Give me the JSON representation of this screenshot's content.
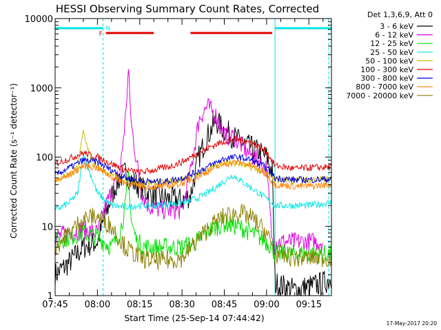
{
  "chart_data": {
    "type": "line",
    "title": "HESSI Observing Summary Count Rates, Corrected",
    "xlabel": "Start Time (25-Sep-14 07:44:42)",
    "ylabel": "Corrected Count Rate (s⁻¹ detector⁻¹)",
    "y_scale": "log",
    "ylim": [
      1,
      10000
    ],
    "xlim_minutes": [
      "07:45",
      "09:23"
    ],
    "x_ticks": [
      "07:45",
      "08:00",
      "08:15",
      "08:30",
      "08:45",
      "09:00",
      "09:15"
    ],
    "y_ticks": [
      "1",
      "10",
      "100",
      "1000",
      "10000"
    ],
    "legend_position": "right-outside",
    "legend_header": "Det 1,3,6,9, Att 0",
    "timestamp": "17-May-2017 20:20",
    "flags": [
      {
        "label": "N",
        "color": "#00e5e5",
        "intervals": [
          [
            "07:45",
            "08:02"
          ],
          [
            "09:03",
            "09:23"
          ]
        ]
      },
      {
        "label": "F",
        "color": "#e00000",
        "intervals": [
          [
            "08:03",
            "08:20"
          ],
          [
            "08:33",
            "09:02"
          ]
        ]
      }
    ],
    "vlines": [
      {
        "time": "08:02",
        "color": "#00e5e5",
        "style": "dashed"
      },
      {
        "time": "09:03",
        "color": "#00e5e5",
        "style": "solid"
      },
      {
        "time": "09:22",
        "color": "#00e5e5",
        "style": "dashed"
      }
    ],
    "series": [
      {
        "name": "3 - 6 keV",
        "color": "#000000",
        "t": [
          "07:45",
          "07:50",
          "07:55",
          "08:00",
          "08:03",
          "08:06",
          "08:08",
          "08:10",
          "08:12",
          "08:14",
          "08:16",
          "08:18",
          "08:20",
          "08:25",
          "08:30",
          "08:33",
          "08:36",
          "08:39",
          "08:42",
          "08:45",
          "08:48",
          "08:51",
          "08:54",
          "08:57",
          "09:00",
          "09:02",
          "09:03",
          "09:10",
          "09:20",
          "09:23"
        ],
        "v": [
          2,
          3,
          5,
          6,
          15,
          35,
          50,
          60,
          45,
          40,
          35,
          30,
          27,
          25,
          24,
          28,
          100,
          200,
          330,
          250,
          200,
          160,
          140,
          120,
          100,
          60,
          1.5,
          1.2,
          1.5,
          1.8
        ]
      },
      {
        "name": "6 - 12 keV",
        "color": "#e000e0",
        "t": [
          "07:45",
          "07:50",
          "07:55",
          "08:00",
          "08:03",
          "08:06",
          "08:08",
          "08:10",
          "08:11",
          "08:12",
          "08:14",
          "08:16",
          "08:18",
          "08:20",
          "08:25",
          "08:30",
          "08:33",
          "08:36",
          "08:39",
          "08:42",
          "08:45",
          "08:48",
          "08:51",
          "08:54",
          "08:57",
          "09:00",
          "09:02",
          "09:03",
          "09:10",
          "09:20",
          "09:23"
        ],
        "v": [
          7,
          8,
          9,
          8,
          20,
          40,
          60,
          400,
          1800,
          300,
          80,
          30,
          20,
          18,
          17,
          17,
          60,
          350,
          550,
          400,
          200,
          200,
          150,
          110,
          90,
          70,
          6,
          6,
          6,
          6
        ]
      },
      {
        "name": "12 - 25 keV",
        "color": "#00e000",
        "t": [
          "07:45",
          "07:50",
          "07:55",
          "08:00",
          "08:05",
          "08:08",
          "08:10",
          "08:11",
          "08:12",
          "08:14",
          "08:17",
          "08:20",
          "08:25",
          "08:30",
          "08:35",
          "08:40",
          "08:45",
          "08:50",
          "08:55",
          "09:00",
          "09:02",
          "09:03",
          "09:10",
          "09:20",
          "09:23"
        ],
        "v": [
          6,
          7,
          8,
          7,
          5,
          8,
          20,
          60,
          12,
          6,
          5,
          5,
          5,
          5,
          6,
          9,
          11,
          10,
          8,
          6,
          5,
          4,
          4,
          4,
          4
        ]
      },
      {
        "name": "25 - 50 keV",
        "color": "#00e5e5",
        "t": [
          "07:45",
          "07:50",
          "07:53",
          "07:55",
          "08:00",
          "08:05",
          "08:10",
          "08:15",
          "08:20",
          "08:25",
          "08:30",
          "08:35",
          "08:40",
          "08:45",
          "08:48",
          "08:51",
          "08:55",
          "09:00",
          "09:03",
          "09:10",
          "09:15",
          "09:23"
        ],
        "v": [
          17,
          22,
          30,
          110,
          30,
          20,
          19,
          20,
          20,
          21,
          22,
          25,
          32,
          45,
          55,
          45,
          35,
          25,
          20,
          20,
          20,
          22
        ]
      },
      {
        "name": "50 - 100 keV",
        "color": "#d0c000",
        "t": [
          "07:45",
          "07:50",
          "07:53",
          "07:55",
          "07:58",
          "08:00",
          "08:05",
          "08:10",
          "08:15",
          "08:20",
          "08:25",
          "08:30",
          "08:35",
          "08:40",
          "08:45",
          "08:50",
          "08:55",
          "09:00",
          "09:03",
          "09:10",
          "09:15",
          "09:23"
        ],
        "v": [
          45,
          55,
          70,
          240,
          80,
          70,
          55,
          45,
          42,
          42,
          43,
          48,
          55,
          70,
          85,
          80,
          70,
          58,
          48,
          47,
          47,
          48
        ]
      },
      {
        "name": "100 - 300 keV",
        "color": "#e00000",
        "t": [
          "07:45",
          "07:50",
          "07:55",
          "08:00",
          "08:05",
          "08:10",
          "08:15",
          "08:20",
          "08:25",
          "08:30",
          "08:35",
          "08:40",
          "08:45",
          "08:50",
          "08:55",
          "09:00",
          "09:03",
          "09:10",
          "09:15",
          "09:23"
        ],
        "v": [
          80,
          95,
          115,
          100,
          80,
          65,
          60,
          65,
          72,
          85,
          110,
          140,
          170,
          180,
          160,
          120,
          75,
          68,
          70,
          72
        ]
      },
      {
        "name": "300 - 800 keV",
        "color": "#0000e0",
        "t": [
          "07:45",
          "07:50",
          "07:55",
          "08:00",
          "08:05",
          "08:10",
          "08:15",
          "08:20",
          "08:25",
          "08:30",
          "08:35",
          "08:40",
          "08:45",
          "08:50",
          "08:55",
          "09:00",
          "09:03",
          "09:10",
          "09:15",
          "09:23"
        ],
        "v": [
          55,
          70,
          90,
          85,
          65,
          50,
          45,
          44,
          45,
          50,
          60,
          75,
          95,
          100,
          90,
          70,
          50,
          47,
          47,
          48
        ]
      },
      {
        "name": "800 - 7000 keV",
        "color": "#ff8000",
        "t": [
          "07:45",
          "07:50",
          "07:55",
          "08:00",
          "08:05",
          "08:10",
          "08:15",
          "08:20",
          "08:25",
          "08:30",
          "08:35",
          "08:40",
          "08:45",
          "08:50",
          "08:55",
          "09:00",
          "09:03",
          "09:10",
          "09:15",
          "09:23"
        ],
        "v": [
          45,
          55,
          75,
          70,
          52,
          42,
          38,
          37,
          38,
          42,
          50,
          65,
          80,
          85,
          75,
          55,
          40,
          38,
          38,
          40
        ]
      },
      {
        "name": "7000 - 20000 keV",
        "color": "#8b8000",
        "t": [
          "07:45",
          "07:50",
          "07:55",
          "08:00",
          "08:05",
          "08:10",
          "08:15",
          "08:20",
          "08:25",
          "08:30",
          "08:35",
          "08:40",
          "08:45",
          "08:50",
          "08:55",
          "09:00",
          "09:03",
          "09:10",
          "09:15",
          "09:23"
        ],
        "v": [
          5,
          8,
          13,
          14,
          10,
          5,
          3.5,
          3.2,
          3.2,
          3.5,
          6,
          10,
          14,
          16,
          13,
          8,
          4,
          3.5,
          3.5,
          3.5
        ]
      }
    ]
  }
}
